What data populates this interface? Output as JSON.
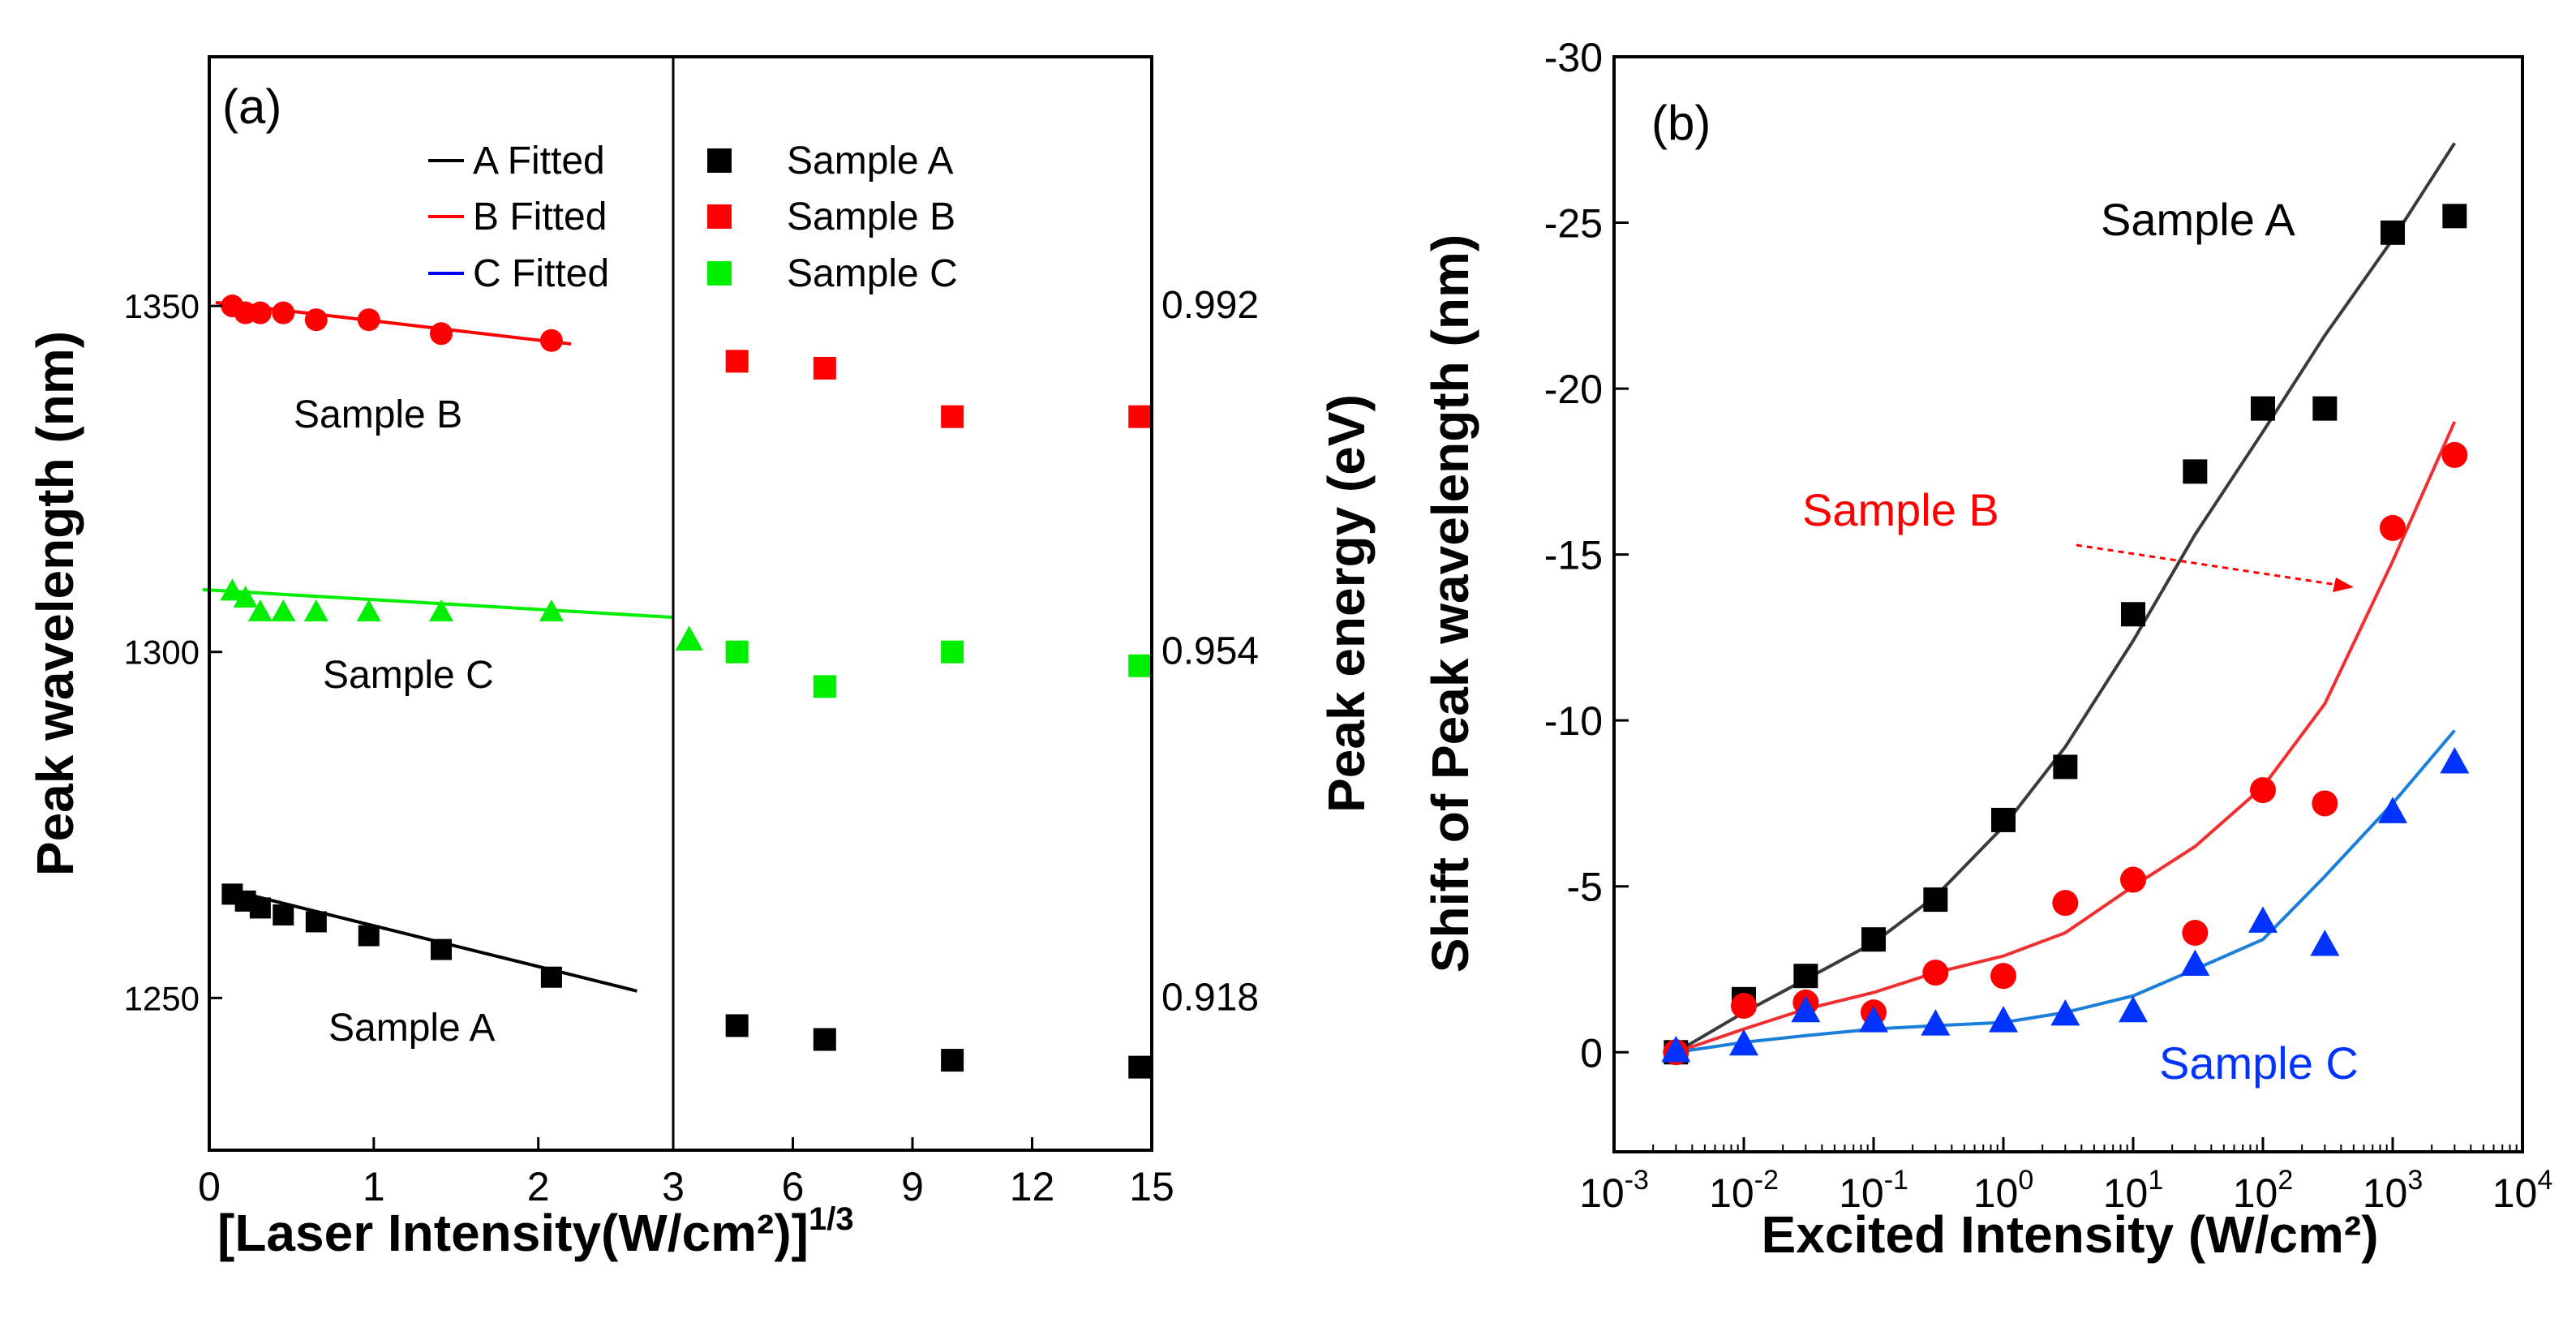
{
  "chart_data": [
    {
      "type": "scatter",
      "panel_label": "(a)",
      "xlabel": "[Laser Intensity(W/cm²)]",
      "xlabel_sup": "1/3",
      "ylabel": "Peak wavelength (nm)",
      "ylabel_right": "Peak energy (eV)",
      "left_segment": {
        "xlim": [
          0,
          2.82
        ],
        "xticks": [
          0,
          1,
          2
        ],
        "series": [
          {
            "name": "Sample A",
            "x": [
              0.14,
              0.22,
              0.31,
              0.45,
              0.65,
              0.97,
              1.41,
              2.08
            ],
            "y": [
              1265,
              1264,
              1263,
              1262,
              1261,
              1259,
              1257,
              1253
            ]
          },
          {
            "name": "Sample B",
            "x": [
              0.14,
              0.22,
              0.31,
              0.45,
              0.65,
              0.97,
              1.41,
              2.08
            ],
            "y": [
              1350,
              1349,
              1349,
              1349,
              1348,
              1348,
              1346,
              1345
            ]
          },
          {
            "name": "Sample C",
            "x": [
              0.14,
              0.22,
              0.31,
              0.45,
              0.65,
              0.97,
              1.41,
              2.08
            ],
            "y": [
              1309,
              1308,
              1306,
              1306,
              1306,
              1306,
              1306,
              1306
            ]
          }
        ],
        "fits": [
          {
            "name": "A Fitted",
            "x": [
              0.14,
              2.6
            ],
            "y": [
              1265.5,
              1251
            ]
          },
          {
            "name": "B Fitted",
            "x": [
              0.04,
              2.2
            ],
            "y": [
              1350.5,
              1344.5
            ]
          },
          {
            "name": "C Fitted",
            "x": [
              -0.04,
              2.82
            ],
            "y": [
              1309,
              1305
            ]
          }
        ]
      },
      "right_segment": {
        "xlim": [
          3,
          15
        ],
        "xticks": [
          3,
          6,
          9,
          12,
          15
        ],
        "series": [
          {
            "name": "Sample A",
            "x": [
              4.6,
              6.8,
              10.0,
              14.7
            ],
            "y": [
              1246,
              1244,
              1241,
              1240
            ]
          },
          {
            "name": "Sample B",
            "x": [
              4.6,
              6.8,
              10.0,
              14.7
            ],
            "y": [
              1342,
              1341,
              1334,
              1334
            ]
          },
          {
            "name": "Sample C",
            "x": [
              4.6,
              6.8,
              10.0,
              14.7
            ],
            "y": [
              1300,
              1295,
              1300,
              1298
            ]
          },
          {
            "name": "Sample C triangle",
            "x": [
              3.4
            ],
            "y": [
              1302
            ]
          }
        ]
      },
      "ylim": [
        1228,
        1386
      ],
      "yticks": [
        1250,
        1300,
        1350
      ],
      "right_yticks": [
        "0.918",
        "0.954",
        "0.992"
      ],
      "legend": {
        "fits": [
          "A Fitted",
          "B Fitted",
          "C Fitted"
        ],
        "samples": [
          "Sample A",
          "Sample B",
          "Sample C"
        ]
      },
      "annotations": [
        "Sample B",
        "Sample C",
        "Sample A"
      ]
    },
    {
      "type": "scatter",
      "panel_label": "(b)",
      "xlabel": "Excited Intensity (W/cm²)",
      "ylabel": "Shift of Peak wavelength (nm)",
      "xscale": "log",
      "xlim_exp": [
        -3,
        4
      ],
      "xticks_exp": [
        "-3",
        "-2",
        "-1",
        "0",
        "1",
        "2",
        "3",
        "4"
      ],
      "ylim": [
        3,
        -30
      ],
      "yticks": [
        "0",
        "-5",
        "-10",
        "-15",
        "-20",
        "-25",
        "-30"
      ],
      "series": [
        {
          "name": "Sample A",
          "x": [
            0.003,
            0.01,
            0.03,
            0.1,
            0.3,
            1,
            3,
            10,
            30,
            100,
            300,
            1000,
            3000
          ],
          "y": [
            0,
            -1.6,
            -2.3,
            -3.4,
            -4.6,
            -7.0,
            -8.6,
            -13.2,
            -17.5,
            -19.4,
            -19.4,
            -24.7,
            -25.2
          ]
        },
        {
          "name": "Sample B",
          "x": [
            0.003,
            0.01,
            0.03,
            0.1,
            0.3,
            1,
            3,
            10,
            30,
            100,
            300,
            1000,
            3000
          ],
          "y": [
            0,
            -1.4,
            -1.5,
            -1.2,
            -2.4,
            -2.3,
            -4.5,
            -5.2,
            -3.6,
            -7.9,
            -7.5,
            -15.8,
            -18.0
          ]
        },
        {
          "name": "Sample C",
          "x": [
            0.003,
            0.01,
            0.03,
            0.1,
            0.3,
            1,
            3,
            10,
            30,
            100,
            300,
            1000,
            3000
          ],
          "y": [
            -0.1,
            -0.3,
            -1.3,
            -1.0,
            -0.9,
            -1.0,
            -1.2,
            -1.3,
            -2.7,
            -4.0,
            -3.3,
            -7.3,
            -8.8
          ]
        }
      ],
      "fits": [
        {
          "name": "Sample A fit",
          "x": [
            0.003,
            0.01,
            0.03,
            0.1,
            0.3,
            1,
            3,
            10,
            30,
            100,
            300,
            1000,
            3000
          ],
          "y": [
            0,
            -1.2,
            -2.2,
            -3.3,
            -4.7,
            -6.8,
            -9.2,
            -12.4,
            -15.6,
            -18.7,
            -21.6,
            -24.5,
            -27.4
          ]
        },
        {
          "name": "Sample B fit",
          "x": [
            0.003,
            0.01,
            0.03,
            0.1,
            0.3,
            1,
            3,
            10,
            30,
            100,
            300,
            1000,
            3000
          ],
          "y": [
            0,
            -0.7,
            -1.3,
            -1.8,
            -2.4,
            -2.9,
            -3.6,
            -5.0,
            -6.2,
            -8.0,
            -10.5,
            -14.8,
            -19.0
          ]
        },
        {
          "name": "Sample C fit",
          "x": [
            0.003,
            0.01,
            0.03,
            0.1,
            0.3,
            1,
            3,
            10,
            30,
            100,
            300,
            1000,
            3000
          ],
          "y": [
            0,
            -0.3,
            -0.5,
            -0.7,
            -0.8,
            -0.9,
            -1.2,
            -1.7,
            -2.5,
            -3.4,
            -5.3,
            -7.5,
            -9.7
          ]
        }
      ],
      "annotations": [
        "Sample A",
        "Sample B",
        "Sample C"
      ]
    }
  ],
  "colors": {
    "sample_a": "#000000",
    "sample_b": "#ff0000",
    "sample_c_a": "#00ee00",
    "sample_c_b": "#0033ff",
    "fit_a_b": "#3a3a3a",
    "fit_b_b": "#f03030",
    "fit_c_b": "#1a7fd8"
  }
}
